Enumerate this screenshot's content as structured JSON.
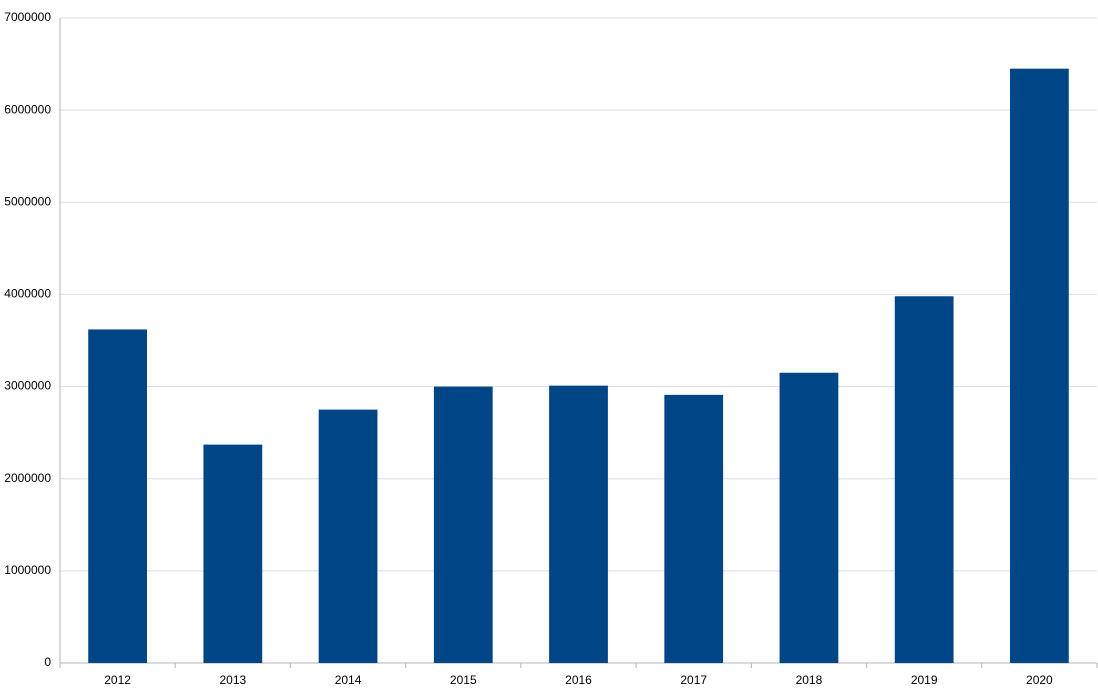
{
  "chart_data": {
    "type": "bar",
    "categories": [
      "2012",
      "2013",
      "2014",
      "2015",
      "2016",
      "2017",
      "2018",
      "2019",
      "2020"
    ],
    "values": [
      3620000,
      2370000,
      2750000,
      3000000,
      3010000,
      2910000,
      3150000,
      3980000,
      6450000
    ],
    "color": "#004586",
    "ylim": [
      0,
      7000000
    ],
    "yticks": [
      0,
      1000000,
      2000000,
      3000000,
      4000000,
      5000000,
      6000000,
      7000000
    ],
    "grid": true
  }
}
